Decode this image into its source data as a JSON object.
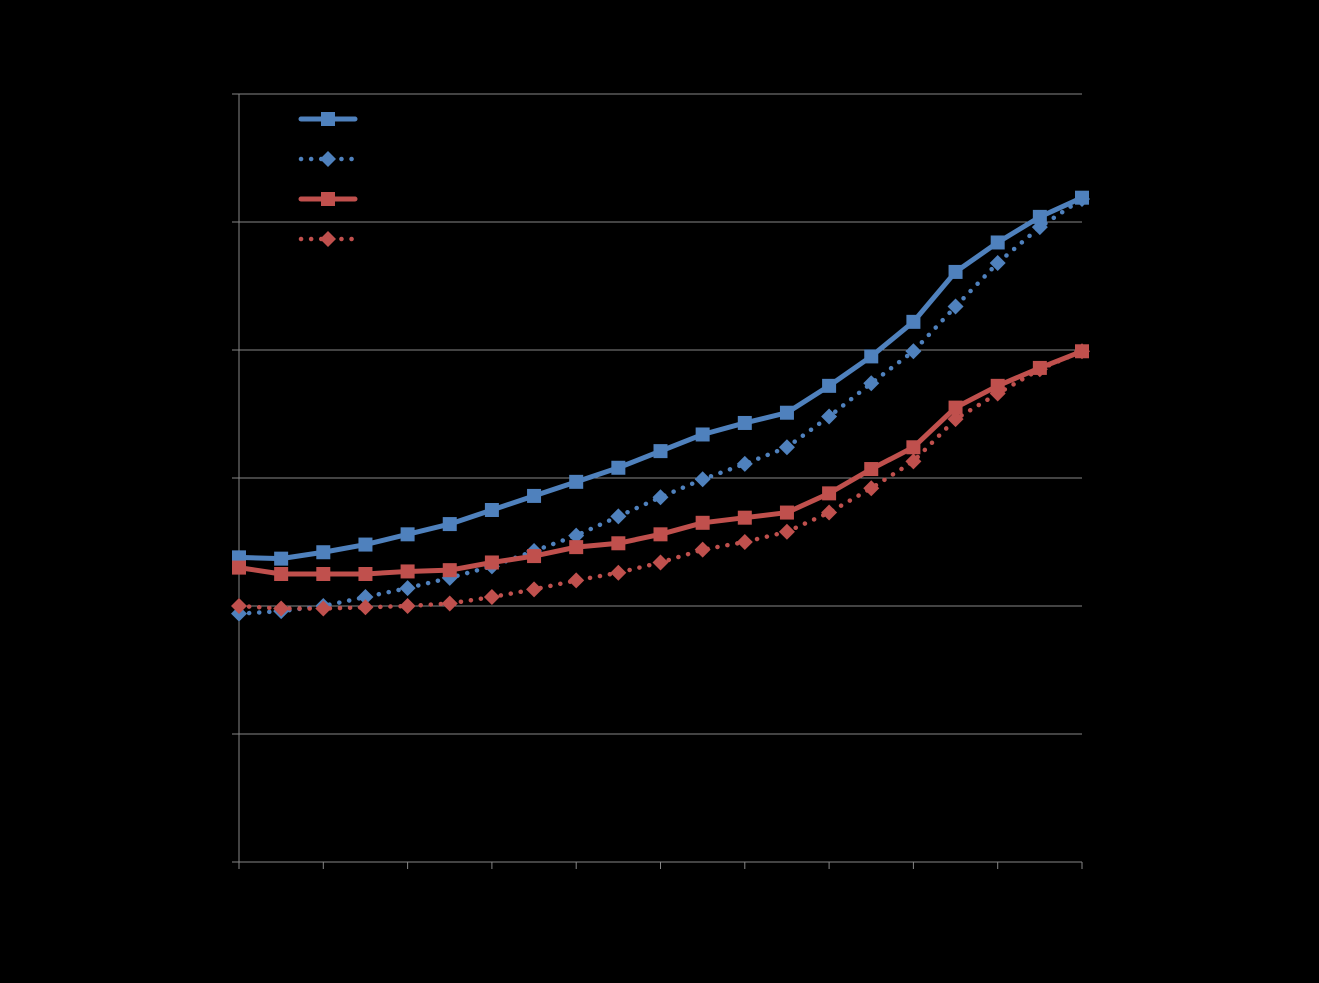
{
  "chart_data": {
    "type": "line",
    "title": "",
    "xlabel": "",
    "ylabel": "",
    "x": [
      0,
      1,
      2,
      3,
      4,
      5,
      6,
      7,
      8,
      9,
      10,
      11,
      12,
      13,
      14,
      15,
      16,
      17,
      18,
      19,
      20
    ],
    "ylim": [
      0,
      6
    ],
    "y_gridlines": [
      0,
      1,
      2,
      3,
      4,
      5,
      6
    ],
    "x_ticks": [
      0,
      2,
      4,
      6,
      8,
      10,
      12,
      14,
      16,
      18,
      20
    ],
    "grid": "horizontal",
    "legend_position": "top-left",
    "series": [
      {
        "color": "#4F81BD",
        "line_style": "solid",
        "marker": "square",
        "values": [
          2.38,
          2.37,
          2.42,
          2.48,
          2.56,
          2.64,
          2.75,
          2.86,
          2.97,
          3.08,
          3.21,
          3.34,
          3.43,
          3.51,
          3.72,
          3.95,
          4.22,
          4.61,
          4.84,
          5.04,
          5.19
        ]
      },
      {
        "color": "#4F81BD",
        "line_style": "dotted",
        "marker": "diamond",
        "values": [
          1.94,
          1.96,
          2.0,
          2.07,
          2.14,
          2.22,
          2.31,
          2.43,
          2.55,
          2.7,
          2.85,
          2.99,
          3.11,
          3.24,
          3.48,
          3.74,
          3.99,
          4.34,
          4.68,
          4.96,
          5.18
        ]
      },
      {
        "color": "#C0504D",
        "line_style": "solid",
        "marker": "square",
        "values": [
          2.3,
          2.25,
          2.25,
          2.25,
          2.27,
          2.28,
          2.34,
          2.39,
          2.46,
          2.49,
          2.56,
          2.65,
          2.69,
          2.73,
          2.88,
          3.07,
          3.24,
          3.55,
          3.72,
          3.86,
          3.99
        ]
      },
      {
        "color": "#C0504D",
        "line_style": "dotted",
        "marker": "diamond",
        "values": [
          2.0,
          1.98,
          1.98,
          1.99,
          2.0,
          2.02,
          2.07,
          2.13,
          2.2,
          2.26,
          2.34,
          2.44,
          2.5,
          2.58,
          2.73,
          2.92,
          3.13,
          3.46,
          3.66,
          3.85,
          3.99
        ]
      }
    ]
  }
}
